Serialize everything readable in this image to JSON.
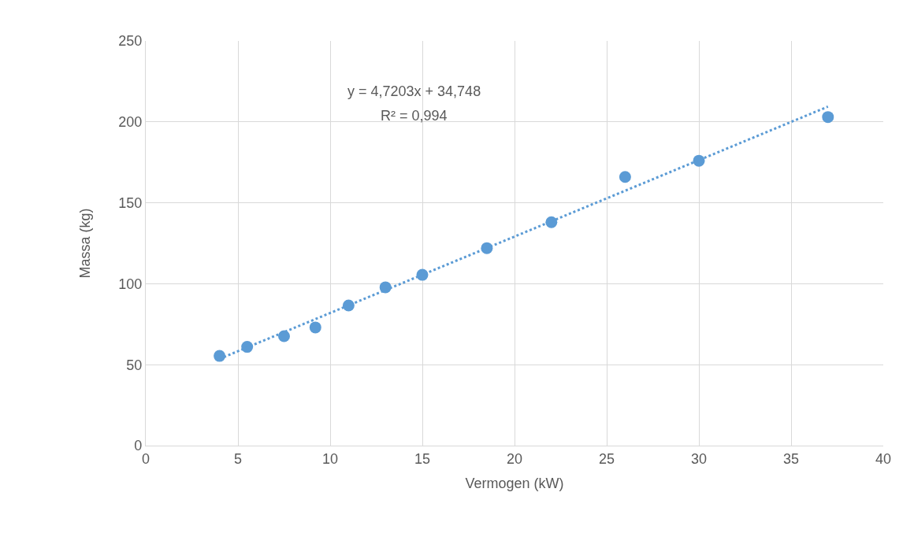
{
  "chart_data": {
    "type": "scatter",
    "xlabel": "Vermogen (kW)",
    "ylabel": "Massa (kg)",
    "xlim": [
      0,
      40
    ],
    "xticks": [
      0,
      5,
      10,
      15,
      20,
      25,
      30,
      35,
      40
    ],
    "ylim": [
      0,
      250
    ],
    "yticks": [
      0,
      50,
      100,
      150,
      200,
      250
    ],
    "grid": true,
    "marker": "circle",
    "series": [
      {
        "color": "#5b9bd5",
        "x": [
          4,
          5.5,
          7.5,
          9.2,
          11,
          13,
          15,
          18.5,
          22,
          26,
          30,
          37
        ],
        "values": [
          55.4,
          61,
          67.6,
          73,
          86.6,
          97.8,
          105.5,
          122,
          138,
          166,
          176,
          203
        ]
      },
      {
        "type": "line",
        "color": "#5b9bd5",
        "line_style": "dotted",
        "marker": "none",
        "x": [
          4,
          37
        ],
        "values": [
          53.6,
          209.4
        ]
      }
    ],
    "annotations": [
      "y = 4,7203x + 34,748",
      "R² = 0,994"
    ]
  }
}
